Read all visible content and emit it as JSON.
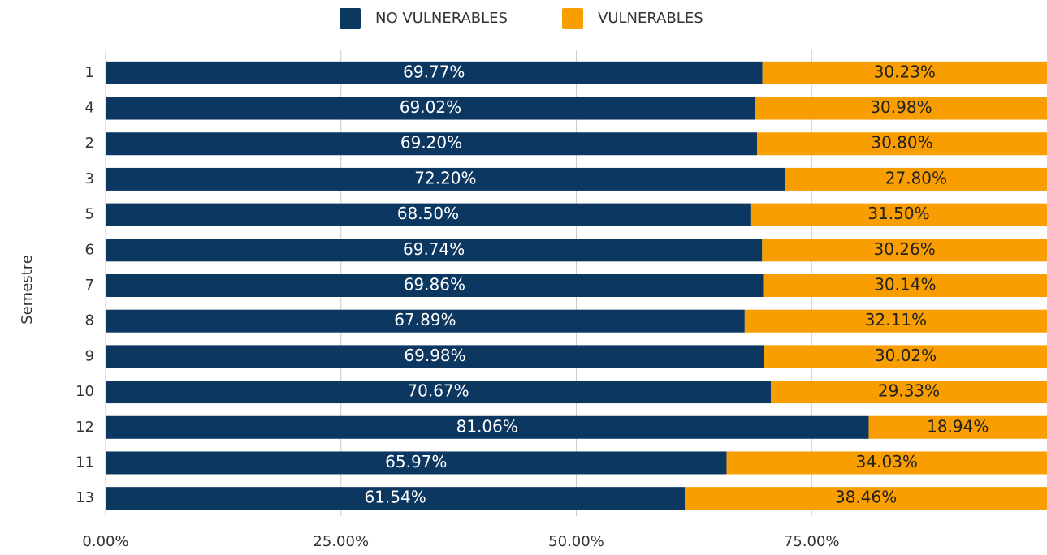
{
  "chart_data": {
    "type": "stacked_barh",
    "y_label": "Semestre",
    "categories": [
      "1",
      "4",
      "2",
      "3",
      "5",
      "6",
      "7",
      "8",
      "9",
      "10",
      "12",
      "11",
      "13"
    ],
    "series": [
      {
        "name": "NO VULNERABLES",
        "color": "#0b3761",
        "values": [
          69.77,
          69.02,
          69.2,
          72.2,
          68.5,
          69.74,
          69.86,
          67.89,
          69.98,
          70.67,
          81.06,
          65.97,
          61.54
        ],
        "value_labels": [
          "69.77%",
          "69.02%",
          "69.20%",
          "72.20%",
          "68.50%",
          "69.74%",
          "69.86%",
          "67.89%",
          "69.98%",
          "70.67%",
          "81.06%",
          "65.97%",
          "61.54%"
        ]
      },
      {
        "name": "VULNERABLES",
        "color": "#f99e00",
        "values": [
          30.23,
          30.98,
          30.8,
          27.8,
          31.5,
          30.26,
          30.14,
          32.11,
          30.02,
          29.33,
          18.94,
          34.03,
          38.46
        ],
        "value_labels": [
          "30.23%",
          "30.98%",
          "30.80%",
          "27.80%",
          "31.50%",
          "30.26%",
          "30.14%",
          "32.11%",
          "30.02%",
          "29.33%",
          "18.94%",
          "34.03%",
          "38.46%"
        ]
      }
    ],
    "xlim": [
      0,
      100
    ],
    "xticks": [
      {
        "value": 0,
        "label": "0.00%"
      },
      {
        "value": 25,
        "label": "25.00%"
      },
      {
        "value": 50,
        "label": "50.00%"
      },
      {
        "value": 75,
        "label": "75.00%"
      }
    ],
    "grid": true,
    "legend": "top"
  }
}
